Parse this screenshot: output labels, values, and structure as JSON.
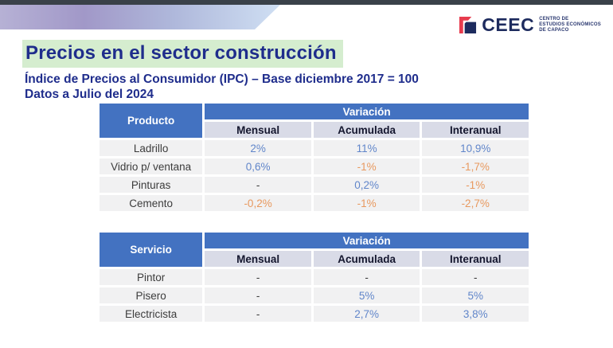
{
  "slide": {
    "title": "Precios en el sector construcción",
    "subtitle_line1": "Índice de Precios al Consumidor (IPC) – Base diciembre 2017 = 100",
    "subtitle_line2": "Datos a Julio del 2024"
  },
  "logo": {
    "name": "CEEC",
    "tagline_lines": [
      "CENTRO DE",
      "ESTUDIOS ECONÓMICOS",
      "DE CAPACO"
    ]
  },
  "tables": [
    {
      "id": "productos",
      "first_col_header": "Producto",
      "group_header": "Variación",
      "col_headers": [
        "Mensual",
        "Acumulada",
        "Interanual"
      ],
      "rows": [
        {
          "label": "Ladrillo",
          "values": [
            {
              "text": "2%",
              "tone": "positive"
            },
            {
              "text": "11%",
              "tone": "positive"
            },
            {
              "text": "10,9%",
              "tone": "positive"
            }
          ]
        },
        {
          "label": "Vidrio p/ ventana",
          "values": [
            {
              "text": "0,6%",
              "tone": "positive"
            },
            {
              "text": "-1%",
              "tone": "negative"
            },
            {
              "text": "-1,7%",
              "tone": "negative"
            }
          ]
        },
        {
          "label": "Pinturas",
          "values": [
            {
              "text": "-",
              "tone": "neutral"
            },
            {
              "text": "0,2%",
              "tone": "positive"
            },
            {
              "text": "-1%",
              "tone": "negative"
            }
          ]
        },
        {
          "label": "Cemento",
          "values": [
            {
              "text": "-0,2%",
              "tone": "negative"
            },
            {
              "text": "-1%",
              "tone": "negative"
            },
            {
              "text": "-2,7%",
              "tone": "negative"
            }
          ]
        }
      ]
    },
    {
      "id": "servicios",
      "first_col_header": "Servicio",
      "group_header": "Variación",
      "col_headers": [
        "Mensual",
        "Acumulada",
        "Interanual"
      ],
      "rows": [
        {
          "label": "Pintor",
          "values": [
            {
              "text": "-",
              "tone": "neutral"
            },
            {
              "text": "-",
              "tone": "neutral"
            },
            {
              "text": "-",
              "tone": "neutral"
            }
          ]
        },
        {
          "label": "Pisero",
          "values": [
            {
              "text": "-",
              "tone": "neutral"
            },
            {
              "text": "5%",
              "tone": "positive"
            },
            {
              "text": "5%",
              "tone": "positive"
            }
          ]
        },
        {
          "label": "Electricista",
          "values": [
            {
              "text": "-",
              "tone": "neutral"
            },
            {
              "text": "2,7%",
              "tone": "positive"
            },
            {
              "text": "3,8%",
              "tone": "positive"
            }
          ]
        }
      ]
    }
  ],
  "colors": {
    "header_blue": "#4372c1",
    "subheader_bg": "#d9dbe7",
    "row_bg": "#f1f1f2",
    "positive_blue": "#6186ca",
    "negative_orange": "#e8995f",
    "neutral_dark": "#3c3c3c",
    "title_navy": "#1f2d8c",
    "highlight_green": "#d5edcf",
    "brand_navy": "#1d2b5e",
    "brand_red": "#e73c4e",
    "top_bar": "#3a4149"
  }
}
